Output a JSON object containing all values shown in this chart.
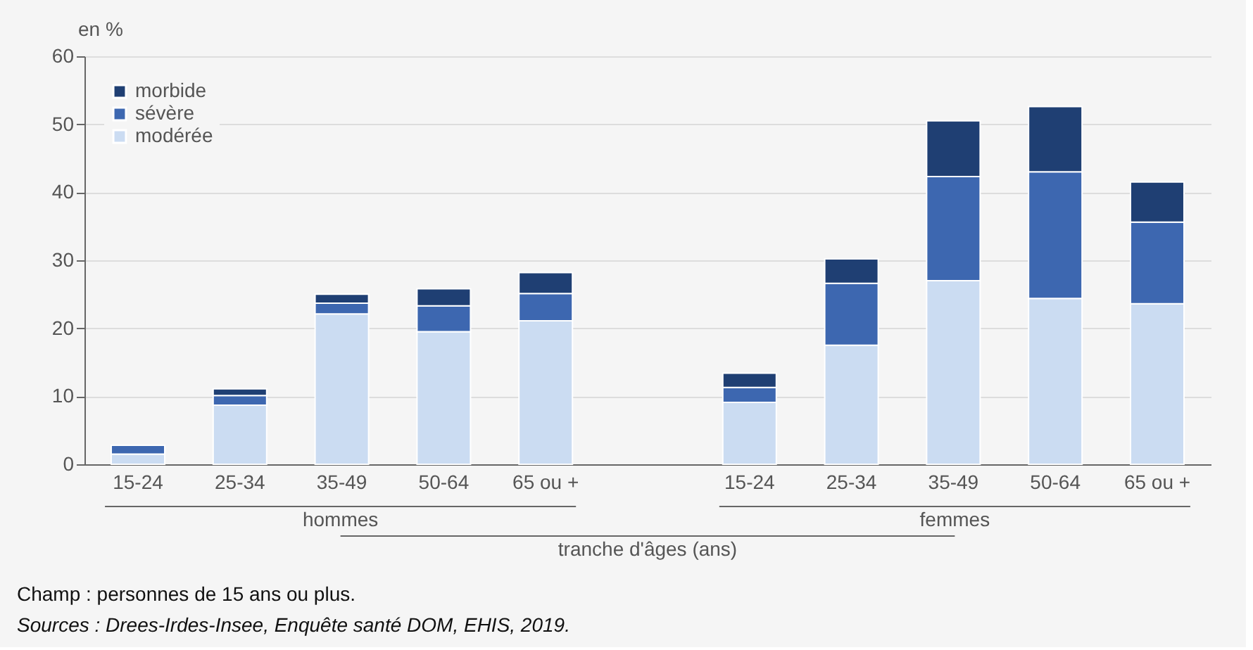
{
  "chart_data": {
    "type": "bar",
    "stacked": true,
    "ylabel": "en %",
    "xlabel": "tranche d'âges (ans)",
    "categories": [
      "15-24",
      "25-34",
      "35-49",
      "50-64",
      "65 ou +",
      null,
      "15-24",
      "25-34",
      "35-49",
      "50-64",
      "65 ou +"
    ],
    "series": [
      {
        "name": "modérée",
        "color": "#cbdcf2",
        "values": [
          1.5,
          8.7,
          22.1,
          19.5,
          21.1,
          null,
          9.1,
          17.5,
          27.0,
          24.4,
          23.6
        ]
      },
      {
        "name": "sévère",
        "color": "#3d67b0",
        "values": [
          1.3,
          1.4,
          1.6,
          3.8,
          4.0,
          null,
          2.2,
          9.1,
          15.3,
          18.6,
          12.0
        ]
      },
      {
        "name": "morbide",
        "color": "#1f3f73",
        "values": [
          null,
          1.0,
          1.3,
          2.5,
          3.1,
          null,
          2.1,
          3.6,
          8.2,
          9.6,
          5.9
        ]
      }
    ],
    "ylim": [
      0,
      60
    ],
    "yticks": [
      0,
      10,
      20,
      30,
      40,
      50,
      60
    ],
    "grid": "y",
    "legend": "top left",
    "annotations": [
      "hommes",
      "femmes",
      "Champ : personnes de 15 ans ou plus.",
      "Sources : Drees-Irdes-Insee, Enquête santé DOM, EHIS, 2019."
    ]
  }
}
